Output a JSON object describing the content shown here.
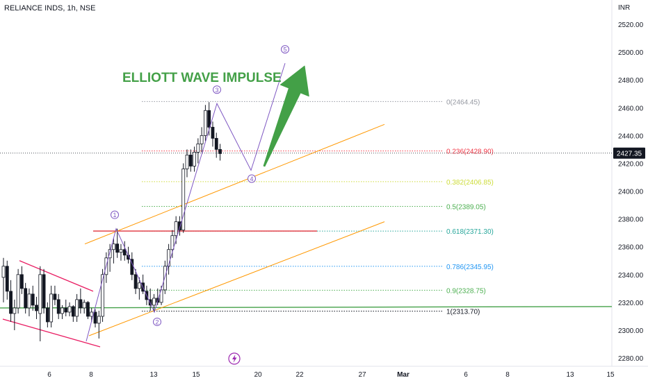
{
  "header": {
    "symbol_title": "RELIANCE INDS, 1h, NSE",
    "currency": "INR"
  },
  "colors": {
    "up_candle": "#ffffff",
    "down_candle": "#131722",
    "candle_outline": "#131722",
    "fib_gray": "#9598a1",
    "fib_red": "#f23645",
    "fib_yellow": "#cddc39",
    "fib_green": "#4caf50",
    "fib_blue": "#2196f3",
    "fib_teal": "#26a69a",
    "fib_black": "#131722",
    "wave_line": "#7e57c2",
    "channel": "#ff9800",
    "resistance": "#e0303a",
    "support": "#43a047",
    "wedge": "#e91e63",
    "arrow": "#43a047",
    "price_badge_bg": "#131722",
    "price_badge_text": "#ffffff",
    "lightning": "#9c27b0"
  },
  "chart_data": {
    "type": "candlestick",
    "annotation_title": "ELLIOTT WAVE IMPULSE",
    "x_axis_ticks": [
      "6",
      "8",
      "13",
      "15",
      "20",
      "22",
      "27",
      "Mar",
      "6",
      "8",
      "13",
      "15"
    ],
    "y_axis_ticks": [
      2280,
      2300,
      2320,
      2340,
      2360,
      2380,
      2400,
      2420,
      2440,
      2460,
      2480,
      2500,
      2520
    ],
    "ylim": [
      2275,
      2530
    ],
    "current_price": "2427.35",
    "current_price_value": 2427.35,
    "fib_levels": [
      {
        "label": "0(2464.45)",
        "value": 2464.45,
        "color": "#9598a1"
      },
      {
        "label": "0.236(2428.90)",
        "value": 2428.9,
        "color": "#f23645"
      },
      {
        "label": "0.382(2406.85)",
        "value": 2406.85,
        "color": "#cddc39"
      },
      {
        "label": "0.5(2389.05)",
        "value": 2389.05,
        "color": "#4caf50"
      },
      {
        "label": "0.618(2371.30)",
        "value": 2371.3,
        "color": "#26a69a"
      },
      {
        "label": "0.786(2345.95)",
        "value": 2345.95,
        "color": "#2196f3"
      },
      {
        "label": "0.9(2328.75)",
        "value": 2328.75,
        "color": "#4caf50"
      },
      {
        "label": "1(2313.70)",
        "value": 2313.7,
        "color": "#131722"
      }
    ],
    "wave_labels": [
      {
        "label": "1",
        "value": 2373
      },
      {
        "label": "2",
        "value": 2313
      },
      {
        "label": "3",
        "value": 2463
      },
      {
        "label": "4",
        "value": 2415
      },
      {
        "label": "5",
        "value": 2492
      }
    ],
    "wave_path_values": [
      2292,
      2373,
      2313,
      2463,
      2415,
      2492
    ],
    "support_level": 2316,
    "resistance_level": 2371.3,
    "channel_upper": [
      2362,
      2448
    ],
    "channel_lower": [
      2296,
      2378
    ],
    "wedge_upper": [
      2350,
      2328
    ],
    "wedge_lower": [
      2308,
      2288
    ],
    "arrow": {
      "start": 2418,
      "end": 2490
    },
    "candles": [
      {
        "o": 2338,
        "h": 2352,
        "l": 2320,
        "c": 2346
      },
      {
        "o": 2346,
        "h": 2350,
        "l": 2322,
        "c": 2328
      },
      {
        "o": 2328,
        "h": 2336,
        "l": 2306,
        "c": 2312
      },
      {
        "o": 2312,
        "h": 2322,
        "l": 2300,
        "c": 2316
      },
      {
        "o": 2316,
        "h": 2344,
        "l": 2312,
        "c": 2340
      },
      {
        "o": 2340,
        "h": 2346,
        "l": 2326,
        "c": 2330
      },
      {
        "o": 2330,
        "h": 2334,
        "l": 2312,
        "c": 2316
      },
      {
        "o": 2316,
        "h": 2330,
        "l": 2310,
        "c": 2326
      },
      {
        "o": 2326,
        "h": 2332,
        "l": 2314,
        "c": 2318
      },
      {
        "o": 2318,
        "h": 2324,
        "l": 2308,
        "c": 2314
      },
      {
        "o": 2312,
        "h": 2346,
        "l": 2292,
        "c": 2340
      },
      {
        "o": 2340,
        "h": 2344,
        "l": 2312,
        "c": 2316
      },
      {
        "o": 2316,
        "h": 2320,
        "l": 2302,
        "c": 2306
      },
      {
        "o": 2306,
        "h": 2332,
        "l": 2302,
        "c": 2326
      },
      {
        "o": 2326,
        "h": 2332,
        "l": 2318,
        "c": 2322
      },
      {
        "o": 2322,
        "h": 2326,
        "l": 2308,
        "c": 2312
      },
      {
        "o": 2312,
        "h": 2318,
        "l": 2308,
        "c": 2316
      },
      {
        "o": 2316,
        "h": 2322,
        "l": 2310,
        "c": 2313
      },
      {
        "o": 2313,
        "h": 2320,
        "l": 2310,
        "c": 2317
      },
      {
        "o": 2317,
        "h": 2318,
        "l": 2306,
        "c": 2310
      },
      {
        "o": 2310,
        "h": 2326,
        "l": 2306,
        "c": 2322
      },
      {
        "o": 2322,
        "h": 2330,
        "l": 2312,
        "c": 2316
      },
      {
        "o": 2316,
        "h": 2322,
        "l": 2312,
        "c": 2320
      },
      {
        "o": 2320,
        "h": 2321,
        "l": 2308,
        "c": 2310
      },
      {
        "o": 2310,
        "h": 2316,
        "l": 2306,
        "c": 2313
      },
      {
        "o": 2313,
        "h": 2315,
        "l": 2302,
        "c": 2305
      },
      {
        "o": 2305,
        "h": 2314,
        "l": 2294,
        "c": 2310
      },
      {
        "o": 2310,
        "h": 2344,
        "l": 2306,
        "c": 2340
      },
      {
        "o": 2340,
        "h": 2356,
        "l": 2334,
        "c": 2352
      },
      {
        "o": 2352,
        "h": 2362,
        "l": 2342,
        "c": 2358
      },
      {
        "o": 2358,
        "h": 2366,
        "l": 2348,
        "c": 2362
      },
      {
        "o": 2362,
        "h": 2373,
        "l": 2352,
        "c": 2356
      },
      {
        "o": 2356,
        "h": 2362,
        "l": 2350,
        "c": 2358
      },
      {
        "o": 2358,
        "h": 2364,
        "l": 2350,
        "c": 2354
      },
      {
        "o": 2354,
        "h": 2360,
        "l": 2348,
        "c": 2351
      },
      {
        "o": 2351,
        "h": 2356,
        "l": 2336,
        "c": 2340
      },
      {
        "o": 2340,
        "h": 2344,
        "l": 2326,
        "c": 2330
      },
      {
        "o": 2330,
        "h": 2338,
        "l": 2322,
        "c": 2334
      },
      {
        "o": 2334,
        "h": 2340,
        "l": 2326,
        "c": 2328
      },
      {
        "o": 2328,
        "h": 2332,
        "l": 2318,
        "c": 2322
      },
      {
        "o": 2322,
        "h": 2330,
        "l": 2314,
        "c": 2318
      },
      {
        "o": 2318,
        "h": 2326,
        "l": 2313,
        "c": 2323
      },
      {
        "o": 2323,
        "h": 2330,
        "l": 2318,
        "c": 2320
      },
      {
        "o": 2320,
        "h": 2332,
        "l": 2318,
        "c": 2329
      },
      {
        "o": 2329,
        "h": 2350,
        "l": 2326,
        "c": 2346
      },
      {
        "o": 2346,
        "h": 2362,
        "l": 2340,
        "c": 2358
      },
      {
        "o": 2358,
        "h": 2372,
        "l": 2352,
        "c": 2368
      },
      {
        "o": 2368,
        "h": 2382,
        "l": 2362,
        "c": 2378
      },
      {
        "o": 2378,
        "h": 2382,
        "l": 2368,
        "c": 2372
      },
      {
        "o": 2372,
        "h": 2420,
        "l": 2370,
        "c": 2416
      },
      {
        "o": 2416,
        "h": 2430,
        "l": 2410,
        "c": 2426
      },
      {
        "o": 2426,
        "h": 2430,
        "l": 2414,
        "c": 2418
      },
      {
        "o": 2418,
        "h": 2432,
        "l": 2414,
        "c": 2428
      },
      {
        "o": 2428,
        "h": 2438,
        "l": 2420,
        "c": 2434
      },
      {
        "o": 2434,
        "h": 2446,
        "l": 2428,
        "c": 2440
      },
      {
        "o": 2440,
        "h": 2462,
        "l": 2436,
        "c": 2458
      },
      {
        "o": 2458,
        "h": 2464,
        "l": 2440,
        "c": 2446
      },
      {
        "o": 2446,
        "h": 2450,
        "l": 2432,
        "c": 2438
      },
      {
        "o": 2438,
        "h": 2442,
        "l": 2424,
        "c": 2430
      },
      {
        "o": 2430,
        "h": 2434,
        "l": 2422,
        "c": 2427
      }
    ]
  }
}
